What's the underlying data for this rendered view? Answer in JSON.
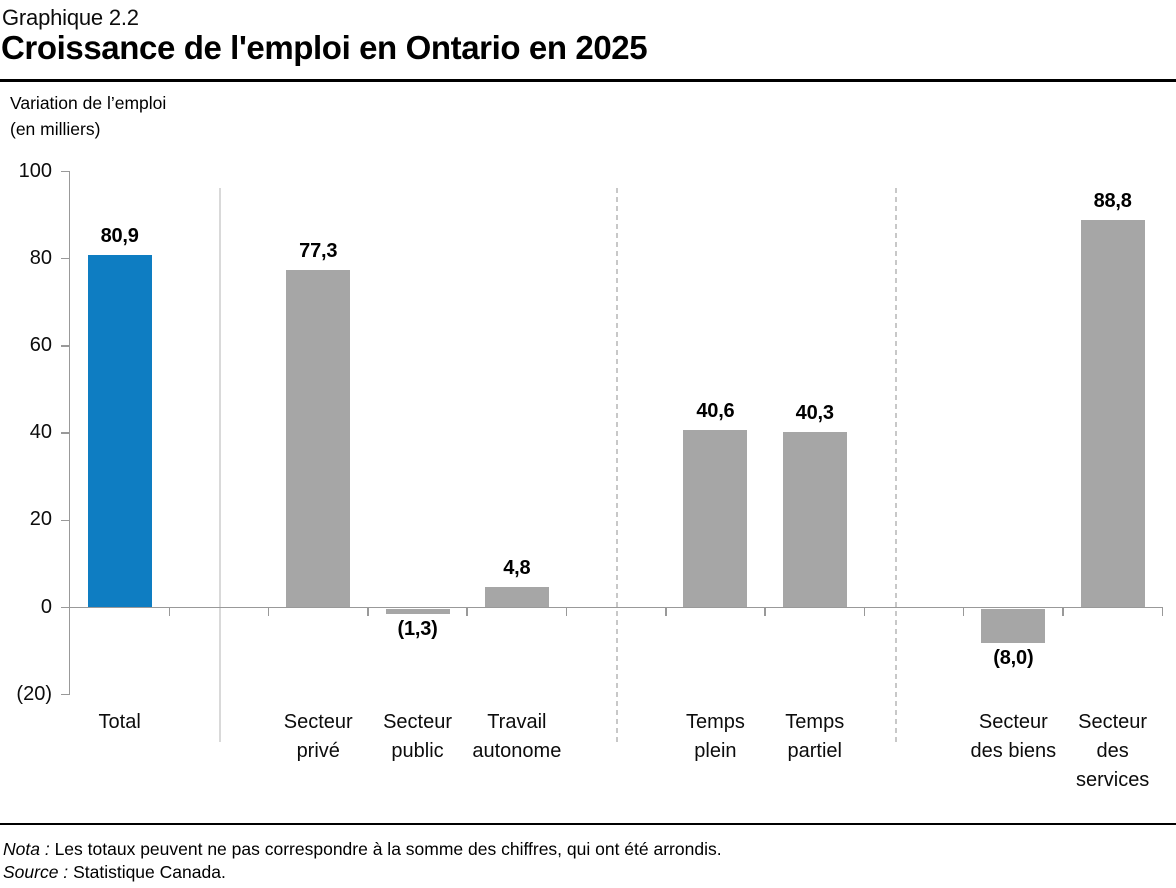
{
  "header": {
    "chart_number": "Graphique 2.2",
    "title": "Croissance de l'emploi en Ontario en 2025"
  },
  "y_axis_title": {
    "line1": "Variation de l’emploi",
    "line2": "(en milliers)"
  },
  "chart_data": {
    "type": "bar",
    "title": "Croissance de l'emploi en Ontario en 2025",
    "ylabel": "Variation de l’emploi (en milliers)",
    "xlabel": "",
    "ylim": [
      -20,
      100
    ],
    "grid": false,
    "legend": "none",
    "ytick_values": [
      100,
      80,
      60,
      40,
      20,
      0,
      -20
    ],
    "ytick_labels": [
      "100",
      "80",
      "60",
      "40",
      "20",
      "0",
      "(20)"
    ],
    "categories": [
      "Total",
      "Secteur privé",
      "Secteur public",
      "Travail autonome",
      "Temps plein",
      "Temps partiel",
      "Secteur des biens",
      "Secteur des services"
    ],
    "category_label_lines": [
      [
        "Total"
      ],
      [
        "Secteur",
        "privé"
      ],
      [
        "Secteur",
        "public"
      ],
      [
        "Travail",
        "autonome"
      ],
      [
        "Temps",
        "plein"
      ],
      [
        "Temps",
        "partiel"
      ],
      [
        "Secteur",
        "des biens"
      ],
      [
        "Secteur",
        "des",
        "services"
      ]
    ],
    "values": [
      80.9,
      77.3,
      -1.3,
      4.8,
      40.6,
      40.3,
      -8.0,
      88.8
    ],
    "value_labels": [
      "80,9",
      "77,3",
      "(1,3)",
      "4,8",
      "40,6",
      "40,3",
      "(8,0)",
      "88,8"
    ],
    "slot_indices": [
      0,
      2,
      3,
      4,
      6,
      7,
      9,
      10
    ],
    "bar_colors": [
      "#0e7dc2",
      "#a6a6a6",
      "#a6a6a6",
      "#a6a6a6",
      "#a6a6a6",
      "#a6a6a6",
      "#a6a6a6",
      "#a6a6a6"
    ],
    "separators": [
      {
        "between": "Total | Secteur privé",
        "style": "solid"
      },
      {
        "between": "Travail autonome | Temps plein",
        "style": "dashed"
      },
      {
        "between": "Temps partiel | Secteur des biens",
        "style": "dashed"
      }
    ],
    "colors": {
      "accent_blue": "#0e7dc2",
      "bar_gray": "#a6a6a6",
      "axis_gray": "#999999"
    }
  },
  "footer": {
    "nota_label": "Nota :",
    "nota_text": "Les totaux peuvent ne pas correspondre à la somme des chiffres, qui ont été arrondis.",
    "source_label": "Source :",
    "source_text": "Statistique Canada."
  }
}
